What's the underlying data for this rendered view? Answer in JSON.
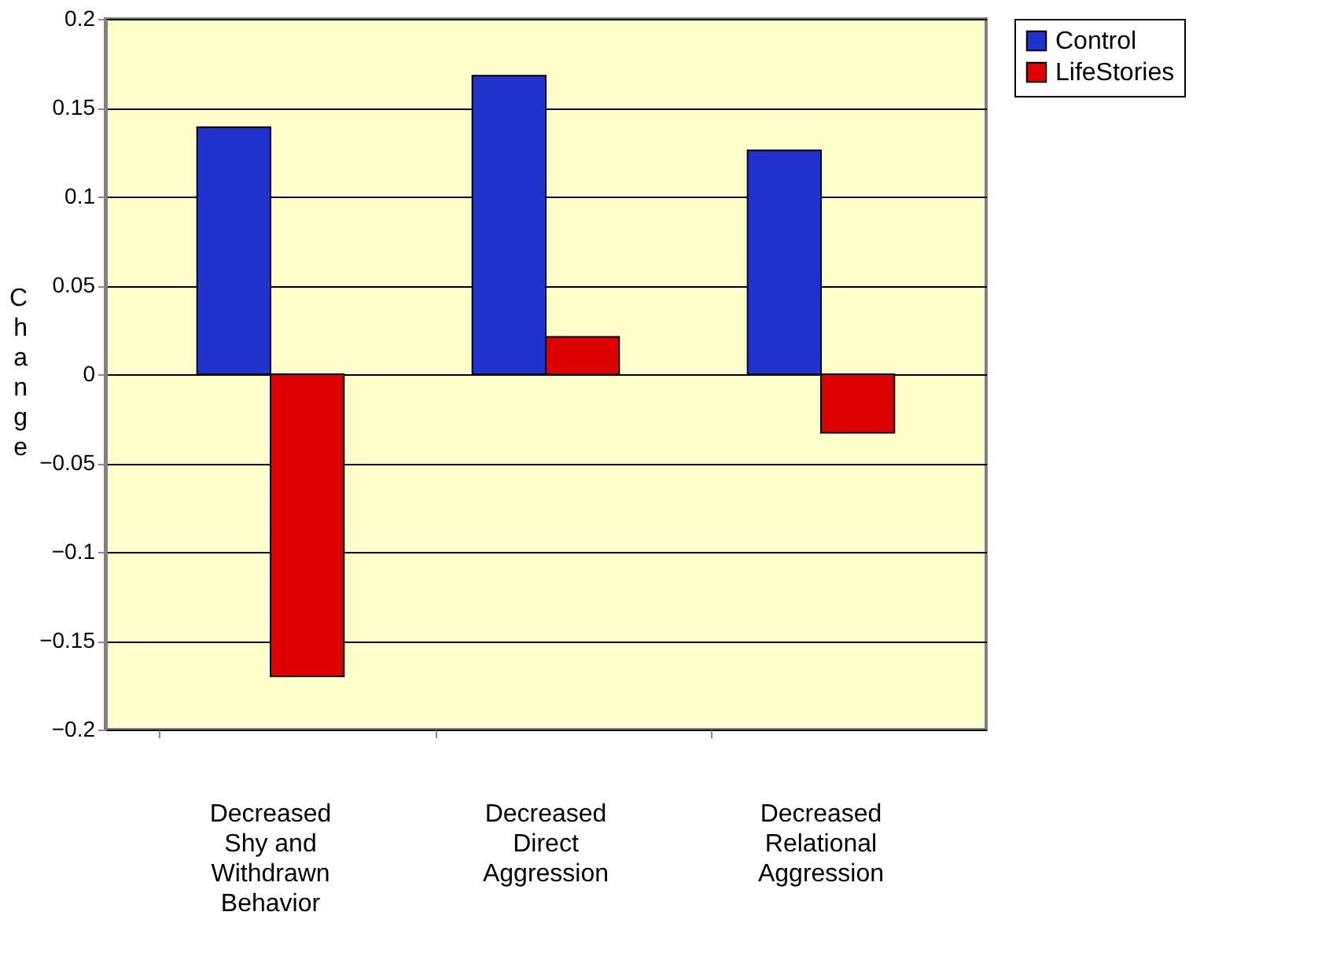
{
  "chart_data": {
    "type": "bar",
    "ylabel": "Change",
    "categories": [
      "Decreased Shy and Withdrawn Behavior",
      "Decreased Direct Aggression",
      "Decreased Relational Aggression"
    ],
    "series": [
      {
        "name": "Control",
        "color": "#2233cc",
        "values": [
          0.139,
          0.168,
          0.126
        ]
      },
      {
        "name": "LifeStories",
        "color": "#dd0000",
        "values": [
          -0.17,
          0.021,
          -0.033
        ]
      }
    ],
    "ylim": [
      -0.2,
      0.2
    ],
    "yticks": [
      -0.2,
      -0.15,
      -0.1,
      -0.05,
      0,
      0.05,
      0.1,
      0.15,
      0.2
    ],
    "grid": "y",
    "legend": "right"
  }
}
